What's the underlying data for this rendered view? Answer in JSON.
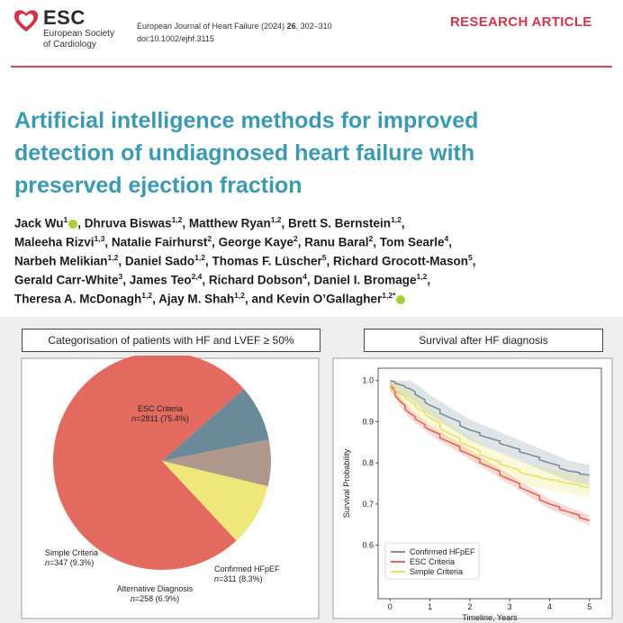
{
  "header": {
    "logo_abbr": "ESC",
    "logo_line1": "European Society",
    "logo_line2": "of Cardiology",
    "journal_name": "European Journal of Heart Failure (2024)",
    "journal_volume": "26",
    "journal_pages": ", 302–310",
    "doi": "doi:10.1002/ejhf.3115",
    "badge": "RESEARCH ARTICLE"
  },
  "article": {
    "title_lines": [
      "Artificial intelligence methods for improved",
      "detection of undiagnosed heart failure with",
      "preserved ejection fraction"
    ],
    "authors": [
      {
        "name": "Jack Wu",
        "sup": "1",
        "orcid": true,
        "sep": ", "
      },
      {
        "name": "Dhruva Biswas",
        "sup": "1,2",
        "sep": ", "
      },
      {
        "name": "Matthew Ryan",
        "sup": "1,2",
        "sep": ", "
      },
      {
        "name": "Brett S. Bernstein",
        "sup": "1,2",
        "sep": ", "
      },
      {
        "name": "Maleeha Rizvi",
        "sup": "1,3",
        "sep": ", "
      },
      {
        "name": "Natalie Fairhurst",
        "sup": "2",
        "sep": ", "
      },
      {
        "name": "George Kaye",
        "sup": "2",
        "sep": ", "
      },
      {
        "name": "Ranu Baral",
        "sup": "2",
        "sep": ", "
      },
      {
        "name": "Tom Searle",
        "sup": "4",
        "sep": ", "
      },
      {
        "name": "Narbeh Melikian",
        "sup": "1,2",
        "sep": ", "
      },
      {
        "name": "Daniel Sado",
        "sup": "1,2",
        "sep": ", "
      },
      {
        "name": "Thomas F. Lüscher",
        "sup": "5",
        "sep": ", "
      },
      {
        "name": "Richard Grocott-Mason",
        "sup": "5",
        "sep": ", "
      },
      {
        "name": "Gerald Carr-White",
        "sup": "3",
        "sep": ", "
      },
      {
        "name": "James Teo",
        "sup": "2,4",
        "sep": ", "
      },
      {
        "name": "Richard Dobson",
        "sup": "4",
        "sep": ", "
      },
      {
        "name": "Daniel I. Bromage",
        "sup": "1,2",
        "sep": ", "
      },
      {
        "name": "Theresa A. McDonagh",
        "sup": "1,2",
        "sep": ", "
      },
      {
        "name": "Ajay M. Shah",
        "sup": "1,2",
        "sep": ", and "
      },
      {
        "name": "Kevin O’Gallagher",
        "sup": "1,2*",
        "orcid": true,
        "sep": ""
      }
    ],
    "author_breaks_after": [
      3,
      8,
      12,
      16
    ]
  },
  "figure": {
    "pie_panel_title": "Categorisation of patients with HF and LVEF ≥ 50%",
    "survival_panel_title": "Survival after HF diagnosis"
  },
  "chart_data": [
    {
      "type": "pie",
      "title": "Categorisation of patients with HF and LVEF ≥ 50%",
      "slices": [
        {
          "label": "ESC Criteria",
          "n_text": "n",
          "count_text": "=2811 (75.4%)",
          "value": 75.4,
          "color": "#e26a5f"
        },
        {
          "label": "Confirmed HFpEF",
          "n_text": "n",
          "count_text": "=311 (8.3%)",
          "value": 8.3,
          "color": "#6b8a99"
        },
        {
          "label": "Alternative Diagnosis",
          "n_text": "n",
          "count_text": "=258 (6.9%)",
          "value": 6.9,
          "color": "#b0988c"
        },
        {
          "label": "Simple Criteria",
          "n_text": "n",
          "count_text": "=347 (9.3%)",
          "value": 9.3,
          "color": "#f0e77a"
        }
      ]
    },
    {
      "type": "line",
      "title": "Survival after HF diagnosis",
      "xlabel": "Timeline, Years",
      "ylabel": "Survival Probability",
      "xlim": [
        -0.3,
        5.3
      ],
      "ylim": [
        0.47,
        1.03
      ],
      "xticks": [
        0,
        1,
        2,
        3,
        4,
        5
      ],
      "yticks": [
        0.6,
        0.7,
        0.8,
        0.9,
        1.0
      ],
      "ytick_labels": [
        "0.6",
        "0.7",
        "0.8",
        "0.9",
        "1.0"
      ],
      "legend": "lower-left",
      "grid": false,
      "series": [
        {
          "name": "Confirmed HFpEF",
          "color": "#6f8391",
          "x": [
            0,
            0.25,
            0.5,
            0.75,
            1,
            1.5,
            2,
            2.5,
            3,
            3.5,
            4,
            4.5,
            5
          ],
          "y": [
            1.0,
            0.99,
            0.98,
            0.96,
            0.94,
            0.91,
            0.88,
            0.86,
            0.84,
            0.82,
            0.8,
            0.78,
            0.77
          ],
          "ci": 0.025
        },
        {
          "name": "ESC Criteria",
          "color": "#e0574f",
          "x": [
            0,
            0.25,
            0.5,
            0.75,
            1,
            1.5,
            2,
            2.5,
            3,
            3.5,
            4,
            4.5,
            5
          ],
          "y": [
            0.99,
            0.95,
            0.92,
            0.9,
            0.88,
            0.85,
            0.82,
            0.79,
            0.76,
            0.73,
            0.7,
            0.68,
            0.66
          ],
          "ci": 0.012
        },
        {
          "name": "Simple Criteria",
          "color": "#e8dd55",
          "x": [
            0,
            0.25,
            0.5,
            0.75,
            1,
            1.5,
            2,
            2.5,
            3,
            3.5,
            4,
            4.5,
            5
          ],
          "y": [
            0.99,
            0.97,
            0.95,
            0.93,
            0.91,
            0.87,
            0.84,
            0.81,
            0.79,
            0.77,
            0.76,
            0.75,
            0.74
          ],
          "ci": 0.025
        }
      ]
    }
  ]
}
